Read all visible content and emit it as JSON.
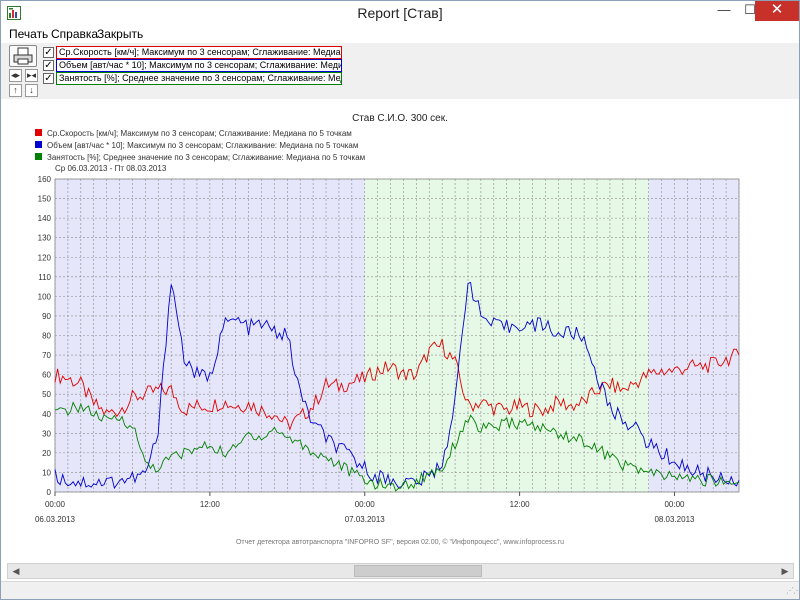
{
  "window": {
    "title": "Report [Став]",
    "icon": "report-app-icon",
    "controls": {
      "minimize": "—",
      "maximize": "☐",
      "close": "✕"
    }
  },
  "menu": {
    "items": [
      "Печать",
      "Справка",
      "Закрыть"
    ]
  },
  "toolbar": {
    "icons": [
      "print-icon",
      "fit-horizontal-icon",
      "collapse-horizontal-icon",
      "scroll-up-icon",
      "scroll-down-icon"
    ],
    "series_checkboxes": [
      {
        "checked": true,
        "label": "Ср.Скорость [км/ч]; Максимум по 3 сенсорам; Сглаживание: Медиана по 5 точ",
        "color": "#e00000"
      },
      {
        "checked": true,
        "label": "Объем [авт/час * 10]; Максимум по 3 сенсорам; Сглаживание: Медиана по 5 то",
        "color": "#0000d0"
      },
      {
        "checked": true,
        "label": "Занятость [%]; Среднее значение по 3 сенсорам; Сглаживание: Медиана по 5",
        "color": "#008000"
      }
    ]
  },
  "footer": "Отчет детектора автотранспорта \"INFOPRO SF\", версия 02.00, © \"Инфопроцесс\", www.infoprocess.ru",
  "colors": {
    "speed": "#e00000",
    "volume": "#0000d0",
    "occupancy": "#008000",
    "night_band": "#e6e6fa",
    "day_band": "#e6f8e6",
    "grid": "#8a8a8a"
  },
  "chart_data": {
    "type": "line",
    "title": "Став С.И.О. 300 сек.",
    "date_range": "Ср 06.03.2013 - Пт 08.03.2013",
    "legend": [
      {
        "label": "Ср.Скорость [км/ч]; Максимум по 3 сенсорам; Сглаживание: Медиана по 5 точкам",
        "color": "#e00000"
      },
      {
        "label": "Объем [авт/час * 10]; Максимум по 3 сенсорам; Сглаживание: Медиана по 5 точкам",
        "color": "#0000d0"
      },
      {
        "label": "Занятость [%]; Среднее значение по 3 сенсорам; Сглаживание: Медиана по 5 точкам",
        "color": "#008000"
      }
    ],
    "legend_position": "top-left",
    "xlim": [
      "06.03.2013 00:00",
      "08.03.2013 05:00"
    ],
    "x_ticks": [
      {
        "time": "00:00",
        "date": "06.03.2013"
      },
      {
        "time": "12:00",
        "date": ""
      },
      {
        "time": "00:00",
        "date": "07.03.2013"
      },
      {
        "time": "12:00",
        "date": ""
      },
      {
        "time": "00:00",
        "date": "08.03.2013"
      }
    ],
    "ylim": [
      0,
      160
    ],
    "y_ticks": [
      "0",
      "10",
      "20",
      "30",
      "40",
      "50",
      "60",
      "70",
      "80",
      "90",
      "100",
      "110",
      "120",
      "130",
      "140",
      "150",
      "160"
    ],
    "grid": true,
    "shaded_bands": [
      {
        "from": "06.03.2013 00:00",
        "to": "07.03.2013 00:00",
        "kind": "night"
      },
      {
        "from": "07.03.2013 00:00",
        "to": "07.03.2013 22:00",
        "kind": "day"
      },
      {
        "from": "07.03.2013 22:00",
        "to": "08.03.2013 05:00",
        "kind": "night"
      }
    ],
    "x": [
      "06.03 00:00",
      "06.03 01:00",
      "06.03 02:00",
      "06.03 03:00",
      "06.03 04:00",
      "06.03 05:00",
      "06.03 06:00",
      "06.03 07:00",
      "06.03 08:00",
      "06.03 09:00",
      "06.03 10:00",
      "06.03 11:00",
      "06.03 12:00",
      "06.03 13:00",
      "06.03 14:00",
      "06.03 15:00",
      "06.03 16:00",
      "06.03 17:00",
      "06.03 18:00",
      "06.03 19:00",
      "06.03 20:00",
      "06.03 21:00",
      "06.03 22:00",
      "06.03 23:00",
      "07.03 00:00",
      "07.03 01:00",
      "07.03 02:00",
      "07.03 03:00",
      "07.03 04:00",
      "07.03 05:00",
      "07.03 06:00",
      "07.03 07:00",
      "07.03 08:00",
      "07.03 09:00",
      "07.03 10:00",
      "07.03 11:00",
      "07.03 12:00",
      "07.03 13:00",
      "07.03 14:00",
      "07.03 15:00",
      "07.03 16:00",
      "07.03 17:00",
      "07.03 18:00",
      "07.03 19:00",
      "07.03 20:00",
      "07.03 21:00",
      "07.03 22:00",
      "07.03 23:00",
      "08.03 00:00",
      "08.03 01:00",
      "08.03 02:00",
      "08.03 03:00",
      "08.03 04:00",
      "08.03 05:00"
    ],
    "series": [
      {
        "name": "Ср.Скорость [км/ч]; Максимум по 3 сенсорам; Сглаживание: Медиана по 5 точкам",
        "color": "#e00000",
        "values": [
          60,
          58,
          55,
          45,
          40,
          42,
          48,
          50,
          52,
          52,
          42,
          44,
          44,
          46,
          44,
          45,
          42,
          40,
          34,
          38,
          44,
          55,
          54,
          56,
          58,
          62,
          64,
          60,
          60,
          72,
          75,
          66,
          44,
          46,
          43,
          42,
          44,
          42,
          42,
          46,
          44,
          46,
          52,
          55,
          52,
          56,
          60,
          62,
          62,
          64,
          64,
          65,
          68,
          70
        ]
      },
      {
        "name": "Объем [авт/час * 10]; Максимум по 3 сенсорам; Сглаживание: Медиана по 5 точкам",
        "color": "#0000d0",
        "values": [
          8,
          6,
          5,
          5,
          5,
          6,
          7,
          9,
          30,
          110,
          68,
          60,
          58,
          85,
          88,
          84,
          86,
          82,
          80,
          50,
          35,
          28,
          22,
          18,
          12,
          8,
          6,
          5,
          5,
          8,
          15,
          45,
          110,
          90,
          85,
          84,
          86,
          85,
          86,
          80,
          82,
          78,
          60,
          42,
          38,
          32,
          25,
          20,
          16,
          12,
          10,
          8,
          7,
          6
        ]
      },
      {
        "name": "Занятость [%]; Среднее значение по 3 сенсорам; Сглаживание: Медиана по 5 точкам",
        "color": "#008000",
        "values": [
          40,
          42,
          44,
          40,
          36,
          38,
          34,
          15,
          12,
          18,
          20,
          22,
          24,
          20,
          22,
          30,
          28,
          32,
          28,
          25,
          20,
          18,
          14,
          10,
          6,
          4,
          3,
          3,
          5,
          10,
          12,
          25,
          38,
          32,
          33,
          35,
          35,
          34,
          32,
          30,
          28,
          26,
          22,
          18,
          14,
          12,
          10,
          8,
          8,
          7,
          6,
          6,
          5,
          5
        ]
      }
    ]
  }
}
